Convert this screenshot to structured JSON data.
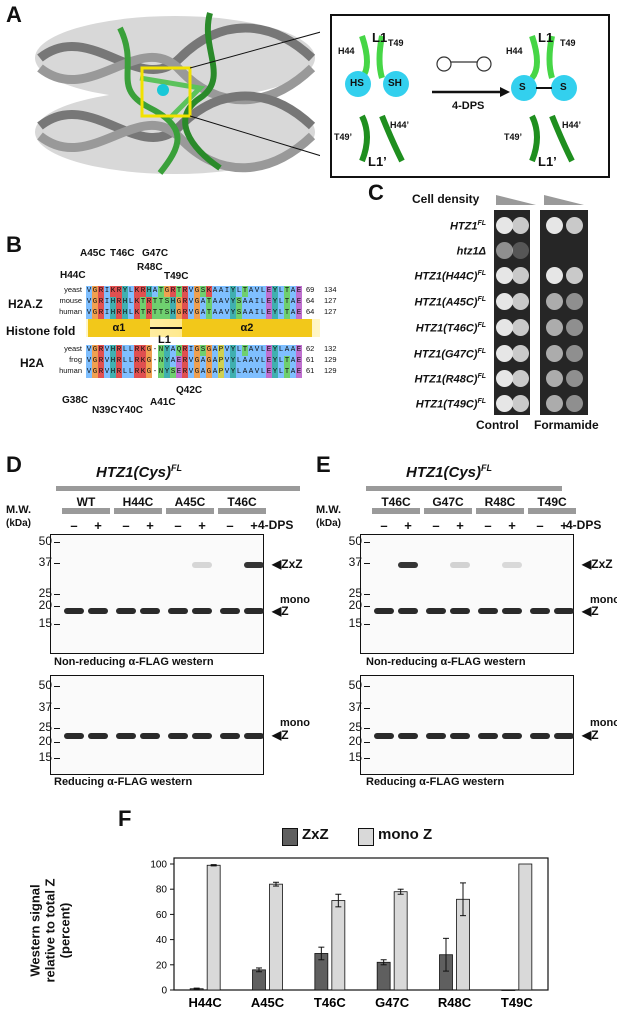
{
  "panel_labels": {
    "a": "A",
    "b": "B",
    "c": "C",
    "d": "D",
    "e": "E",
    "f": "F"
  },
  "panel_a": {
    "l1": "L1",
    "l1p": "L1’",
    "h44": "H44",
    "t49": "T49",
    "h44p": "H44’",
    "t49p": "T49’",
    "hs": "HS",
    "sh": "SH",
    "s1": "S",
    "s2": "S",
    "reagent": "4-DPS"
  },
  "panel_b": {
    "mutations_top": [
      "A45C",
      "T46C",
      "G47C",
      "H44C",
      "R48C",
      "T49C"
    ],
    "mutations_bottom": [
      "Q42C",
      "G38C",
      "N39C",
      "A41C",
      "Y40C"
    ],
    "h2az_label": "H2A.Z",
    "h2a_label": "H2A",
    "fold_label": "Histone fold",
    "alpha1": "α1",
    "alpha2": "α2",
    "loop": "L1",
    "h2az_species": [
      "yeast",
      "mouse",
      "human"
    ],
    "h2az_seqs": [
      "VGRIKRYLKRHATGRTRVGSKAAIYLTAVLEYLTAE",
      "VGRIHRHLKTRTTSHGRVGATAAVYSAAILEYLTAE",
      "VGRIHRHLKTRTTSHGRVGATAAVYSAAILEYLTAE"
    ],
    "h2az_ends": [
      "69",
      "64",
      "64"
    ],
    "h2az_totals": [
      "134",
      "127",
      "127"
    ],
    "h2a_species": [
      "yeast",
      "frog",
      "human"
    ],
    "h2a_seqs": [
      "VGRVHRLLRKG-NYAQRIGSGAPVYLTAVLEYLAAE",
      "VGRVHRLLRKG-NYAERVGAGAPVYLAAVLEYLTAE",
      "VGRVHRLLRKG-NYSERVGAGAPVYLAAVLEYLTAE"
    ],
    "h2a_ends": [
      "62",
      "61",
      "61"
    ],
    "h2a_totals": [
      "132",
      "129",
      "129"
    ]
  },
  "panel_c": {
    "cell_density": "Cell density",
    "strains": [
      "HTZ1FL",
      "htz1Δ",
      "HTZ1(H44C)FL",
      "HTZ1(A45C)FL",
      "HTZ1(T46C)FL",
      "HTZ1(G47C)FL",
      "HTZ1(R48C)FL",
      "HTZ1(T49C)FL"
    ],
    "strain_base": [
      "HTZ1",
      "htz1Δ",
      "HTZ1(H44C)",
      "HTZ1(A45C)",
      "HTZ1(T46C)",
      "HTZ1(G47C)",
      "HTZ1(R48C)",
      "HTZ1(T49C)"
    ],
    "strain_sup": [
      "FL",
      "",
      "FL",
      "FL",
      "FL",
      "FL",
      "FL",
      "FL"
    ],
    "control": "Control",
    "formamide": "Formamide"
  },
  "panel_d": {
    "title": "HTZ1(Cys)",
    "title_sup": "FL",
    "mw_label": "M.W.",
    "kda": "(kDa)",
    "lanes": [
      "WT",
      "H44C",
      "A45C",
      "T46C"
    ],
    "minus": "–",
    "plus": "+",
    "reagent": "4-DPS",
    "markers": [
      "50",
      "37",
      "25",
      "20",
      "15"
    ],
    "zxz": "ZxZ",
    "mono": "mono",
    "z": "Z",
    "top_caption": "Non-reducing α-FLAG western",
    "bottom_caption": "Reducing α-FLAG western"
  },
  "panel_e": {
    "title": "HTZ1(Cys)",
    "title_sup": "FL",
    "mw_label": "M.W.",
    "kda": "(kDa)",
    "lanes": [
      "T46C",
      "G47C",
      "R48C",
      "T49C"
    ],
    "minus": "–",
    "plus": "+",
    "reagent": "4-DPS",
    "markers": [
      "50",
      "37",
      "25",
      "20",
      "15"
    ],
    "zxz": "ZxZ",
    "mono": "mono",
    "z": "Z",
    "top_caption": "Non-reducing α-FLAG western",
    "bottom_caption": "Reducing α-FLAG western"
  },
  "chart_data": {
    "type": "bar",
    "categories": [
      "H44C",
      "A45C",
      "T46C",
      "G47C",
      "R48C",
      "T49C"
    ],
    "series": [
      {
        "name": "ZxZ",
        "values": [
          1,
          16,
          29,
          22,
          28,
          0
        ],
        "errors": [
          0.5,
          1.5,
          5,
          2,
          13,
          0
        ],
        "color": "#5f5f5f"
      },
      {
        "name": "mono Z",
        "values": [
          99,
          84,
          71,
          78,
          72,
          100
        ],
        "errors": [
          0.5,
          1.5,
          5,
          2,
          13,
          0
        ],
        "color": "#d9d9d9"
      }
    ],
    "ylabel": "Western signal relative to total Z (percent)",
    "ylabel_lines": [
      "Western signal",
      "relative to total Z",
      "(percent)"
    ],
    "yticks": [
      "0",
      "20",
      "40",
      "60",
      "80",
      "100"
    ],
    "ylim": [
      0,
      100
    ],
    "grid": false,
    "legend_position": "top"
  }
}
